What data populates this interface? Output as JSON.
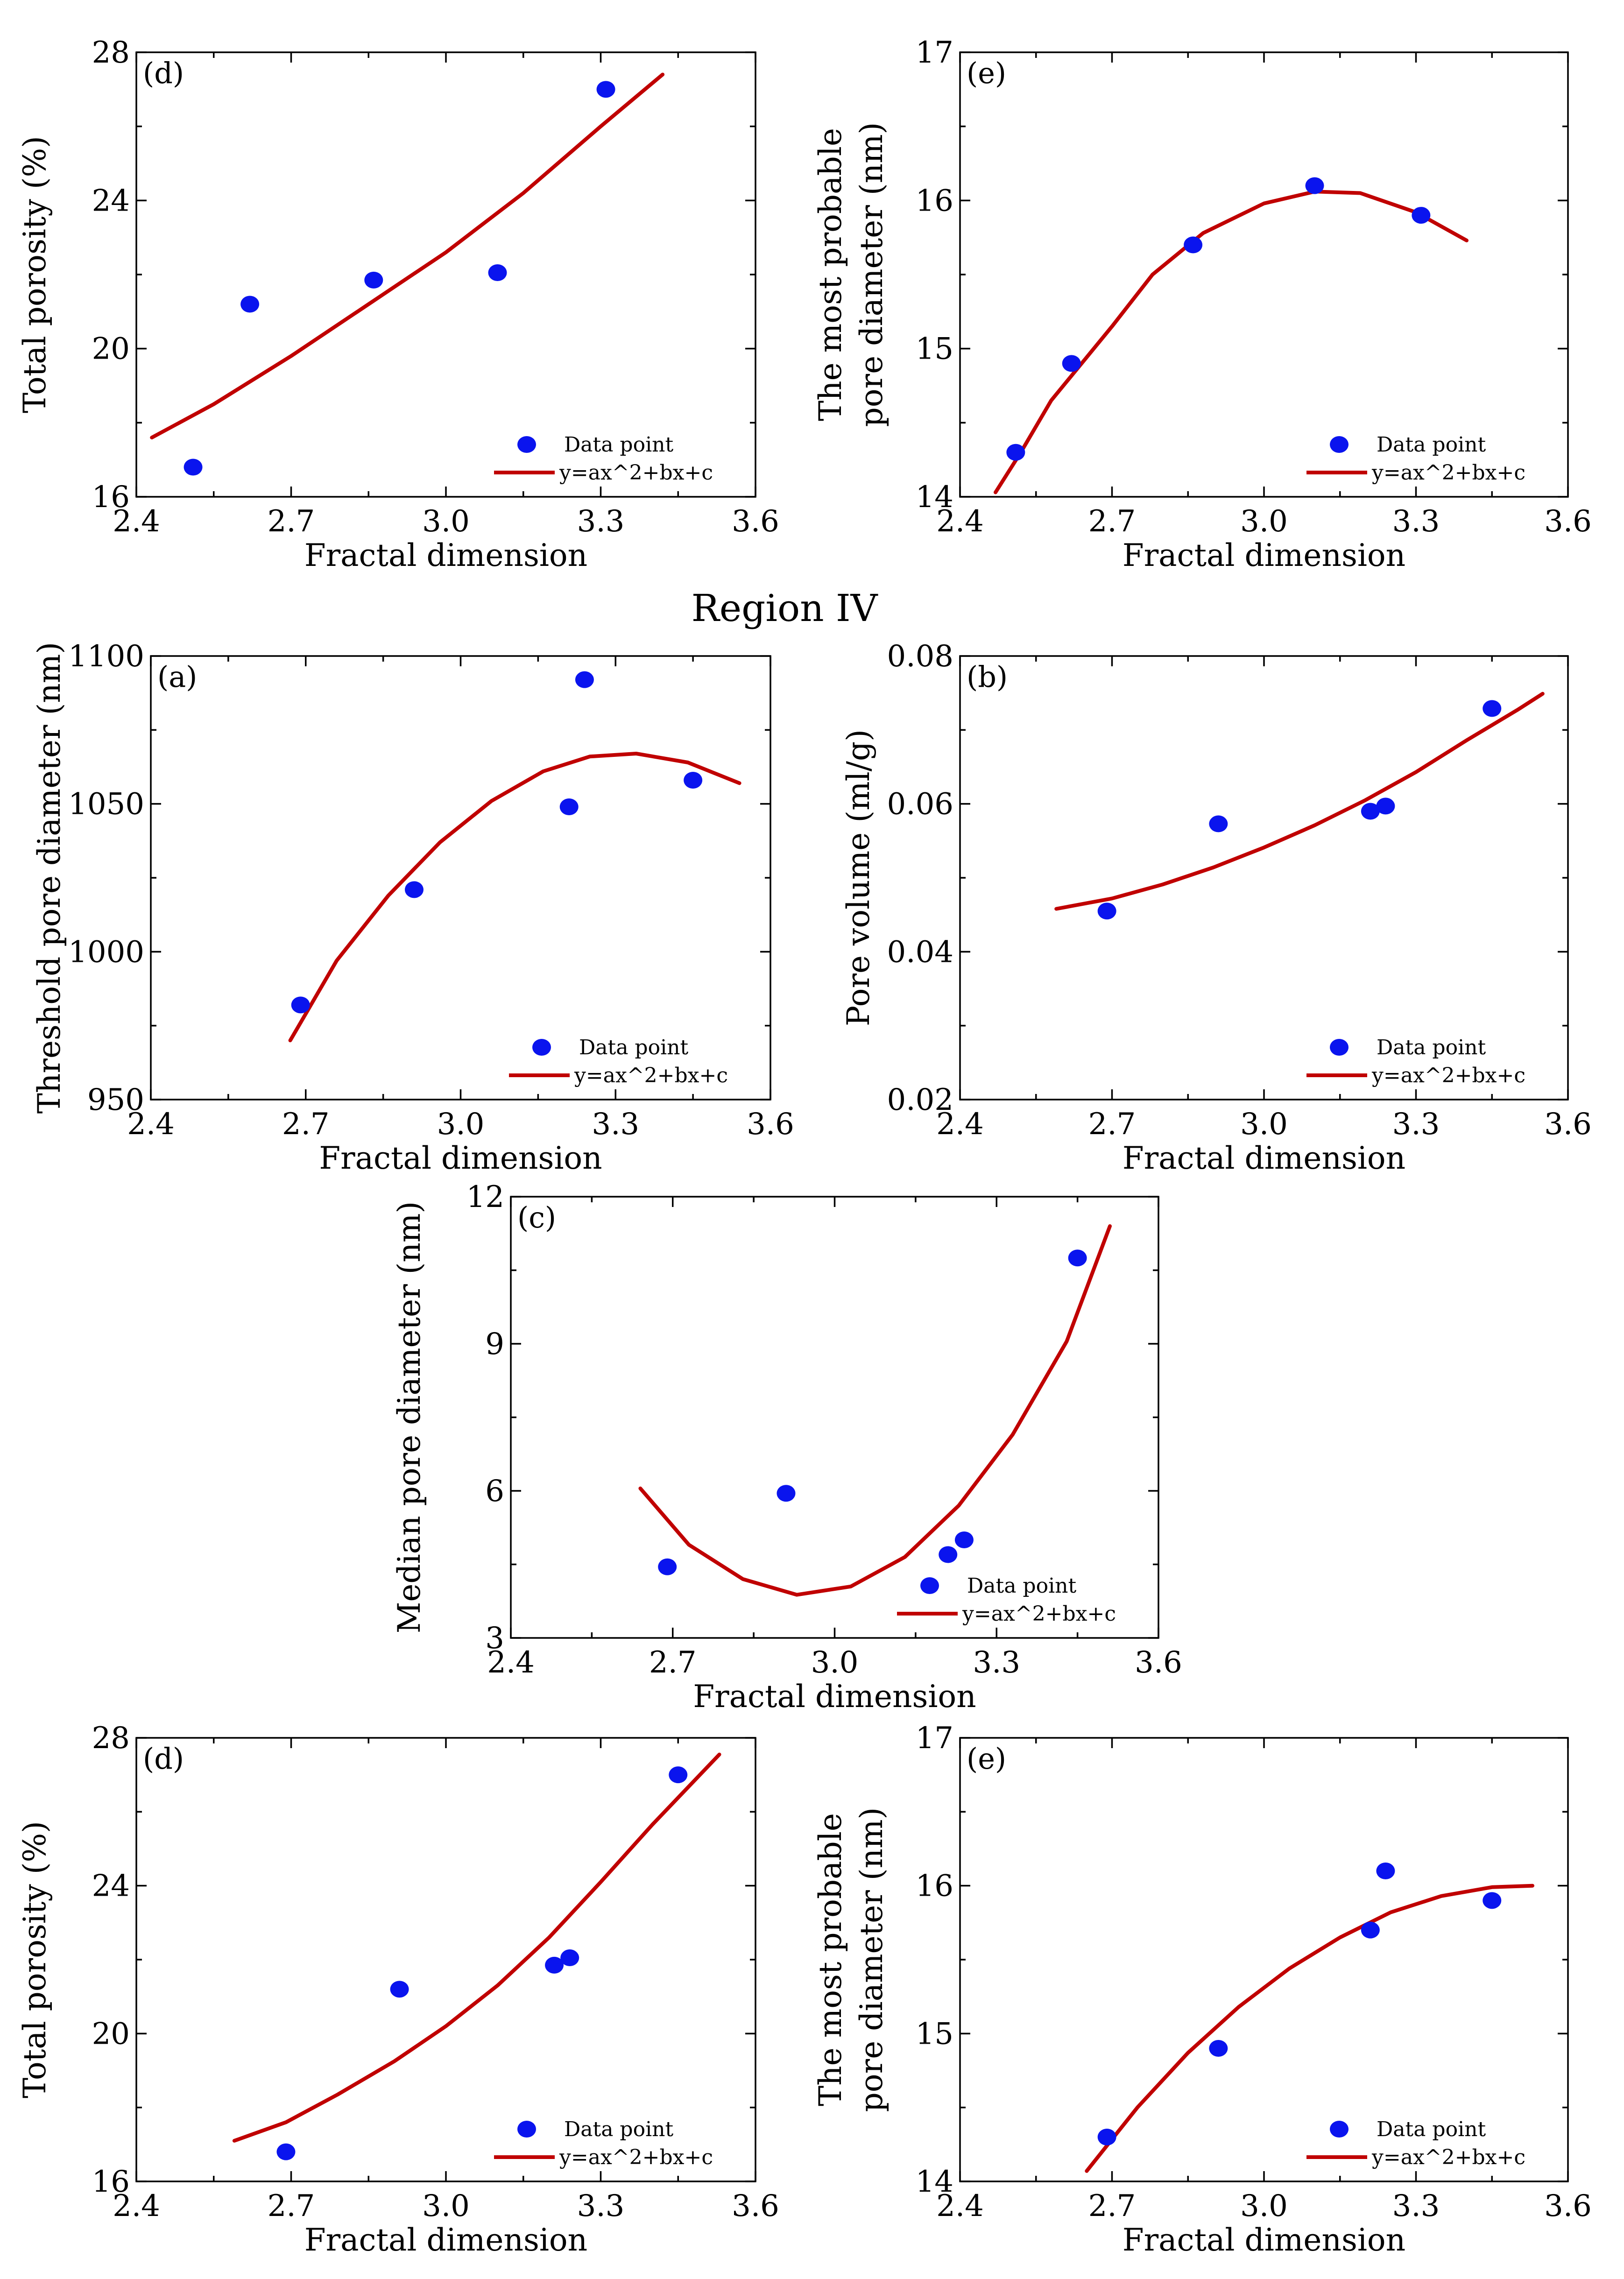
{
  "figure": {
    "region_title": "Region IV",
    "colors": {
      "point": "#0a14ee",
      "fit": "#c00000",
      "axis": "#000000"
    }
  },
  "chart_data": [
    {
      "id": "top-d",
      "type": "scatter",
      "panel_label": "(d)",
      "xlabel": "Fractal dimension",
      "ylabel": [
        "Total porosity (%)"
      ],
      "xlim": [
        2.4,
        3.6
      ],
      "ylim": [
        16,
        28
      ],
      "xticks": [
        2.4,
        2.7,
        3.0,
        3.3,
        3.6
      ],
      "xtick_labels": [
        "2.4",
        "2.7",
        "3.0",
        "3.3",
        "3.6"
      ],
      "yticks": [
        16,
        20,
        24,
        28
      ],
      "ytick_labels": [
        "16",
        "20",
        "24",
        "28"
      ],
      "legend": {
        "position": "bottom-right",
        "points_label": "Data point",
        "fit_label": "y=ax^2+bx+c"
      },
      "points": [
        [
          2.51,
          16.8
        ],
        [
          2.62,
          21.2
        ],
        [
          2.86,
          21.85
        ],
        [
          3.1,
          22.05
        ],
        [
          3.31,
          27.0
        ]
      ],
      "fit": [
        [
          2.43,
          17.6
        ],
        [
          2.55,
          18.5
        ],
        [
          2.7,
          19.8
        ],
        [
          2.85,
          21.2
        ],
        [
          3.0,
          22.6
        ],
        [
          3.15,
          24.2
        ],
        [
          3.3,
          26.0
        ],
        [
          3.42,
          27.4
        ]
      ]
    },
    {
      "id": "top-e",
      "type": "scatter",
      "panel_label": "(e)",
      "xlabel": "Fractal dimension",
      "ylabel": [
        "The most probable",
        "pore diameter (nm)"
      ],
      "xlim": [
        2.4,
        3.6
      ],
      "ylim": [
        14,
        17
      ],
      "xticks": [
        2.4,
        2.7,
        3.0,
        3.3,
        3.6
      ],
      "xtick_labels": [
        "2.4",
        "2.7",
        "3.0",
        "3.3",
        "3.6"
      ],
      "yticks": [
        14,
        15,
        16,
        17
      ],
      "ytick_labels": [
        "14",
        "15",
        "16",
        "17"
      ],
      "legend": {
        "position": "bottom-right",
        "points_label": "Data point",
        "fit_label": "y=ax^2+bx+c"
      },
      "points": [
        [
          2.51,
          14.3
        ],
        [
          2.62,
          14.9
        ],
        [
          2.86,
          15.7
        ],
        [
          3.1,
          16.1
        ],
        [
          3.31,
          15.9
        ]
      ],
      "fit": [
        [
          2.47,
          14.03
        ],
        [
          2.52,
          14.3
        ],
        [
          2.58,
          14.65
        ],
        [
          2.7,
          15.15
        ],
        [
          2.78,
          15.5
        ],
        [
          2.88,
          15.78
        ],
        [
          3.0,
          15.98
        ],
        [
          3.1,
          16.06
        ],
        [
          3.19,
          16.05
        ],
        [
          3.3,
          15.92
        ],
        [
          3.4,
          15.73
        ]
      ]
    },
    {
      "id": "mid-a",
      "type": "scatter",
      "panel_label": "(a)",
      "xlabel": "Fractal dimension",
      "ylabel": [
        "Threshold pore diameter (nm)"
      ],
      "xlim": [
        2.4,
        3.6
      ],
      "ylim": [
        950,
        1100
      ],
      "xticks": [
        2.4,
        2.7,
        3.0,
        3.3,
        3.6
      ],
      "xtick_labels": [
        "2.4",
        "2.7",
        "3.0",
        "3.3",
        "3.6"
      ],
      "yticks": [
        950,
        1000,
        1050,
        1100
      ],
      "ytick_labels": [
        "950",
        "1000",
        "1050",
        "1100"
      ],
      "legend": {
        "position": "bottom-right",
        "points_label": "Data point",
        "fit_label": "y=ax^2+bx+c"
      },
      "points": [
        [
          2.69,
          982
        ],
        [
          2.91,
          1021
        ],
        [
          3.21,
          1049
        ],
        [
          3.24,
          1092
        ],
        [
          3.45,
          1058
        ]
      ],
      "fit": [
        [
          2.67,
          970
        ],
        [
          2.76,
          997
        ],
        [
          2.86,
          1019
        ],
        [
          2.96,
          1037
        ],
        [
          3.06,
          1051
        ],
        [
          3.16,
          1061
        ],
        [
          3.25,
          1066
        ],
        [
          3.34,
          1067
        ],
        [
          3.44,
          1064
        ],
        [
          3.54,
          1057
        ]
      ]
    },
    {
      "id": "mid-b",
      "type": "scatter",
      "panel_label": "(b)",
      "xlabel": "Fractal dimension",
      "ylabel": [
        "Pore volume (ml/g)"
      ],
      "xlim": [
        2.4,
        3.6
      ],
      "ylim": [
        0.02,
        0.08
      ],
      "xticks": [
        2.4,
        2.7,
        3.0,
        3.3,
        3.6
      ],
      "xtick_labels": [
        "2.4",
        "2.7",
        "3.0",
        "3.3",
        "3.6"
      ],
      "yticks": [
        0.02,
        0.04,
        0.06,
        0.08
      ],
      "ytick_labels": [
        "0.02",
        "0.04",
        "0.06",
        "0.08"
      ],
      "legend": {
        "position": "bottom-right",
        "points_label": "Data point",
        "fit_label": "y=ax^2+bx+c"
      },
      "points": [
        [
          2.69,
          0.0455
        ],
        [
          2.91,
          0.0573
        ],
        [
          3.21,
          0.059
        ],
        [
          3.24,
          0.0597
        ],
        [
          3.45,
          0.0729
        ]
      ],
      "fit": [
        [
          2.59,
          0.0458
        ],
        [
          2.7,
          0.0472
        ],
        [
          2.8,
          0.0491
        ],
        [
          2.9,
          0.0514
        ],
        [
          3.0,
          0.0541
        ],
        [
          3.1,
          0.0571
        ],
        [
          3.2,
          0.0605
        ],
        [
          3.3,
          0.0643
        ],
        [
          3.4,
          0.0686
        ],
        [
          3.5,
          0.0727
        ],
        [
          3.55,
          0.0749
        ]
      ]
    },
    {
      "id": "mid-c",
      "type": "scatter",
      "panel_label": "(c)",
      "xlabel": "Fractal dimension",
      "ylabel": [
        "Median pore diameter (nm)"
      ],
      "xlim": [
        2.4,
        3.6
      ],
      "ylim": [
        3,
        12
      ],
      "xticks": [
        2.4,
        2.7,
        3.0,
        3.3,
        3.6
      ],
      "xtick_labels": [
        "2.4",
        "2.7",
        "3.0",
        "3.3",
        "3.6"
      ],
      "yticks": [
        3,
        6,
        9,
        12
      ],
      "ytick_labels": [
        "3",
        "6",
        "9",
        "12"
      ],
      "legend": {
        "position": "bottom-right",
        "points_label": "Data point",
        "fit_label": "y=ax^2+bx+c"
      },
      "points": [
        [
          2.69,
          4.45
        ],
        [
          2.91,
          5.95
        ],
        [
          3.21,
          4.7
        ],
        [
          3.24,
          5.0
        ],
        [
          3.45,
          10.75
        ]
      ],
      "fit": [
        [
          2.64,
          6.05
        ],
        [
          2.73,
          4.9
        ],
        [
          2.83,
          4.2
        ],
        [
          2.93,
          3.88
        ],
        [
          3.03,
          4.05
        ],
        [
          3.13,
          4.65
        ],
        [
          3.23,
          5.7
        ],
        [
          3.33,
          7.15
        ],
        [
          3.43,
          9.05
        ],
        [
          3.51,
          11.4
        ]
      ]
    },
    {
      "id": "bot-d",
      "type": "scatter",
      "panel_label": "(d)",
      "xlabel": "Fractal dimension",
      "ylabel": [
        "Total porosity (%)"
      ],
      "xlim": [
        2.4,
        3.6
      ],
      "ylim": [
        16,
        28
      ],
      "xticks": [
        2.4,
        2.7,
        3.0,
        3.3,
        3.6
      ],
      "xtick_labels": [
        "2.4",
        "2.7",
        "3.0",
        "3.3",
        "3.6"
      ],
      "yticks": [
        16,
        20,
        24,
        28
      ],
      "ytick_labels": [
        "16",
        "20",
        "24",
        "28"
      ],
      "legend": {
        "position": "bottom-right",
        "points_label": "Data point",
        "fit_label": "y=ax^2+bx+c"
      },
      "points": [
        [
          2.69,
          16.8
        ],
        [
          2.91,
          21.2
        ],
        [
          3.21,
          21.85
        ],
        [
          3.24,
          22.05
        ],
        [
          3.45,
          27.0
        ]
      ],
      "fit": [
        [
          2.59,
          17.1
        ],
        [
          2.69,
          17.6
        ],
        [
          2.79,
          18.35
        ],
        [
          2.9,
          19.25
        ],
        [
          3.0,
          20.2
        ],
        [
          3.1,
          21.3
        ],
        [
          3.2,
          22.6
        ],
        [
          3.3,
          24.1
        ],
        [
          3.4,
          25.65
        ],
        [
          3.53,
          27.55
        ]
      ]
    },
    {
      "id": "bot-e",
      "type": "scatter",
      "panel_label": "(e)",
      "xlabel": "Fractal dimension",
      "ylabel": [
        "The most probable",
        "pore diameter (nm)"
      ],
      "xlim": [
        2.4,
        3.6
      ],
      "ylim": [
        14,
        17
      ],
      "xticks": [
        2.4,
        2.7,
        3.0,
        3.3,
        3.6
      ],
      "xtick_labels": [
        "2.4",
        "2.7",
        "3.0",
        "3.3",
        "3.6"
      ],
      "yticks": [
        14,
        15,
        16,
        17
      ],
      "ytick_labels": [
        "14",
        "15",
        "16",
        "17"
      ],
      "legend": {
        "position": "bottom-right",
        "points_label": "Data point",
        "fit_label": "y=ax^2+bx+c"
      },
      "points": [
        [
          2.69,
          14.3
        ],
        [
          2.91,
          14.9
        ],
        [
          3.21,
          15.7
        ],
        [
          3.24,
          16.1
        ],
        [
          3.45,
          15.9
        ]
      ],
      "fit": [
        [
          2.65,
          14.07
        ],
        [
          2.75,
          14.5
        ],
        [
          2.85,
          14.87
        ],
        [
          2.95,
          15.18
        ],
        [
          3.05,
          15.44
        ],
        [
          3.15,
          15.65
        ],
        [
          3.25,
          15.82
        ],
        [
          3.35,
          15.93
        ],
        [
          3.45,
          15.99
        ],
        [
          3.53,
          16.0
        ]
      ]
    }
  ]
}
